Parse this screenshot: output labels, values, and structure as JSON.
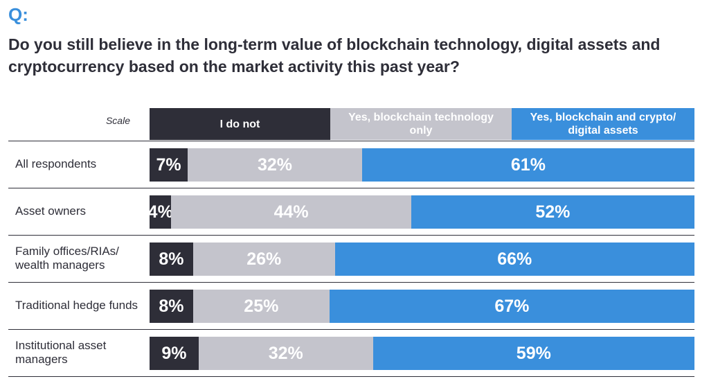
{
  "header": {
    "q_label": "Q:",
    "question": "Do you still believe in the long-term value of blockchain technology, digital assets and cryptocurrency based on the market activity this past year?"
  },
  "chart_data": {
    "type": "bar",
    "orientation": "horizontal",
    "stacked": true,
    "scale_label": "Scale",
    "categories": [
      "All respondents",
      "Asset owners",
      "Family offices/RIAs/ wealth managers",
      "Traditional hedge funds",
      "Institutional asset managers"
    ],
    "series": [
      {
        "name": "I do not",
        "values": [
          7,
          4,
          8,
          8,
          9
        ],
        "labels": [
          "7%",
          "4%",
          "8%",
          "8%",
          "9%"
        ],
        "color": "#2e2e38"
      },
      {
        "name": "Yes, blockchain technology only",
        "values": [
          32,
          44,
          26,
          25,
          32
        ],
        "labels": [
          "32%",
          "44%",
          "26%",
          "25%",
          "32%"
        ],
        "color": "#c4c4cc"
      },
      {
        "name": "Yes, blockchain and crypto/ digital assets",
        "values": [
          61,
          52,
          66,
          67,
          59
        ],
        "labels": [
          "61%",
          "52%",
          "66%",
          "67%",
          "59%"
        ],
        "color": "#3a8fdc"
      }
    ],
    "xlim": [
      0,
      100
    ],
    "legend_position": "top"
  }
}
